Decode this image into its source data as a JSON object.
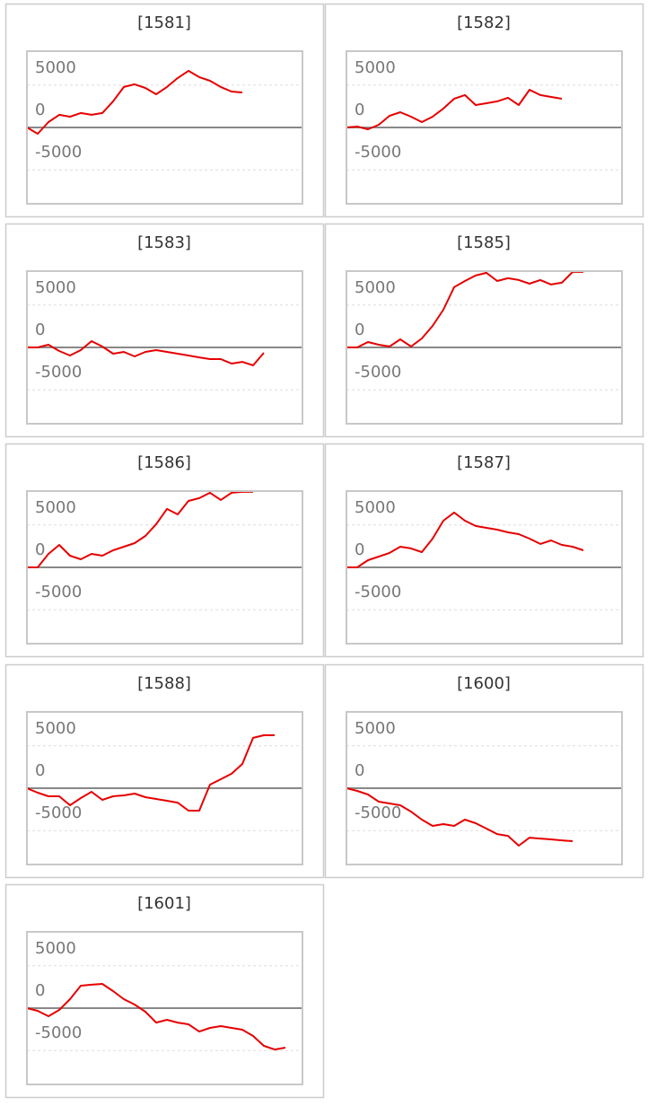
{
  "chart_data": [
    {
      "type": "line",
      "title": "[1581]",
      "color": "#e60000",
      "ylim": [
        -9000,
        9000
      ],
      "yticks": [
        5000,
        0,
        -5000
      ],
      "grid": true,
      "values": [
        0,
        -740,
        640,
        1490,
        1270,
        1700,
        1490,
        1700,
        3080,
        4770,
        5090,
        4660,
        3920,
        4770,
        5830,
        6680,
        5940,
        5510,
        4770,
        4240,
        4130
      ]
    },
    {
      "type": "line",
      "title": "[1582]",
      "color": "#e60000",
      "ylim": [
        -9000,
        9000
      ],
      "yticks": [
        5000,
        0,
        -5000
      ],
      "grid": true,
      "values": [
        0,
        110,
        -210,
        320,
        1380,
        1800,
        1270,
        640,
        1270,
        2230,
        3390,
        3820,
        2650,
        2860,
        3080,
        3500,
        2650,
        4450,
        3820,
        3600,
        3390
      ]
    },
    {
      "type": "line",
      "title": "[1583]",
      "color": "#e60000",
      "ylim": [
        -9000,
        9000
      ],
      "yticks": [
        5000,
        0,
        -5000
      ],
      "grid": true,
      "values": [
        0,
        0,
        320,
        -420,
        -950,
        -320,
        740,
        110,
        -740,
        -530,
        -1060,
        -530,
        -320,
        -530,
        -740,
        -950,
        -1170,
        -1380,
        -1380,
        -1910,
        -1700,
        -2120,
        -640
      ]
    },
    {
      "type": "line",
      "title": "[1585]",
      "color": "#e60000",
      "ylim": [
        -9000,
        9000
      ],
      "yticks": [
        5000,
        0,
        -5000
      ],
      "grid": true,
      "values": [
        0,
        0,
        640,
        320,
        110,
        950,
        110,
        1060,
        2540,
        4450,
        7100,
        7840,
        8480,
        8800,
        7840,
        8160,
        7950,
        7520,
        7950,
        7420,
        7630,
        8900,
        8900
      ]
    },
    {
      "type": "line",
      "title": "[1586]",
      "color": "#e60000",
      "ylim": [
        -9000,
        9000
      ],
      "yticks": [
        5000,
        0,
        -5000
      ],
      "grid": true,
      "values": [
        0,
        0,
        1590,
        2650,
        1380,
        950,
        1590,
        1380,
        2010,
        2440,
        2860,
        3710,
        5090,
        6890,
        6250,
        7840,
        8160,
        8800,
        7950,
        8800,
        8900,
        8900
      ]
    },
    {
      "type": "line",
      "title": "[1587]",
      "color": "#e60000",
      "ylim": [
        -9000,
        9000
      ],
      "yticks": [
        5000,
        0,
        -5000
      ],
      "grid": true,
      "values": [
        0,
        0,
        850,
        1270,
        1700,
        2440,
        2230,
        1800,
        3390,
        5510,
        6470,
        5510,
        4880,
        4660,
        4450,
        4130,
        3920,
        3390,
        2760,
        3180,
        2650,
        2440,
        2010
      ]
    },
    {
      "type": "line",
      "title": "[1588]",
      "color": "#e60000",
      "ylim": [
        -9000,
        9000
      ],
      "yticks": [
        5000,
        0,
        -5000
      ],
      "grid": true,
      "values": [
        0,
        -530,
        -950,
        -950,
        -2010,
        -1170,
        -420,
        -1380,
        -950,
        -850,
        -640,
        -1060,
        -1270,
        -1480,
        -1700,
        -2650,
        -2650,
        420,
        1060,
        1700,
        2860,
        5940,
        6250,
        6250
      ]
    },
    {
      "type": "line",
      "title": "[1600]",
      "color": "#e60000",
      "ylim": [
        -9000,
        9000
      ],
      "yticks": [
        5000,
        0,
        -5000
      ],
      "grid": true,
      "values": [
        0,
        -320,
        -740,
        -1590,
        -1800,
        -2010,
        -2760,
        -3710,
        -4450,
        -4240,
        -4450,
        -3710,
        -4130,
        -4770,
        -5410,
        -5620,
        -6780,
        -5830,
        -5940,
        -6040,
        -6150,
        -6250
      ]
    },
    {
      "type": "line",
      "title": "[1601]",
      "color": "#e60000",
      "ylim": [
        -9000,
        9000
      ],
      "yticks": [
        5000,
        0,
        -5000
      ],
      "grid": true,
      "values": [
        0,
        -320,
        -950,
        -210,
        1060,
        2650,
        2760,
        2860,
        2010,
        1060,
        420,
        -420,
        -1700,
        -1380,
        -1700,
        -1910,
        -2760,
        -2330,
        -2120,
        -2330,
        -2540,
        -3280,
        -4450,
        -4880,
        -4660
      ]
    }
  ]
}
